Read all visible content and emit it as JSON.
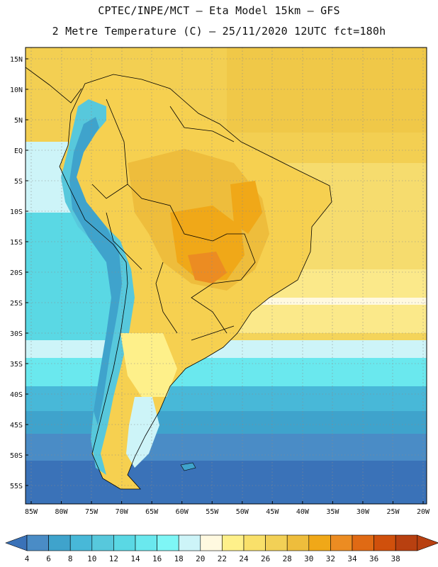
{
  "title_line1": "CPTEC/INPE/MCT –  Eta Model 15km – GFS",
  "title_line2": "2 Metre Temperature (C) – 25/11/2020 12UTC fct=180h",
  "latitude_ticks": [
    "15N",
    "10N",
    "5N",
    "EQ",
    "5S",
    "10S",
    "15S",
    "20S",
    "25S",
    "30S",
    "35S",
    "40S",
    "45S",
    "50S",
    "55S"
  ],
  "longitude_ticks": [
    "85W",
    "80W",
    "75W",
    "70W",
    "65W",
    "60W",
    "55W",
    "50W",
    "45W",
    "40W",
    "35W",
    "30W",
    "25W",
    "20W"
  ],
  "colorbar": {
    "labels": [
      "4",
      "6",
      "8",
      "10",
      "12",
      "14",
      "16",
      "18",
      "20",
      "22",
      "24",
      "26",
      "28",
      "30",
      "32",
      "34",
      "36",
      "38"
    ],
    "colors": [
      "#3a72b8",
      "#4a8cc6",
      "#3fa3cc",
      "#48b8d8",
      "#57c8dc",
      "#5ad8e4",
      "#6ae8ee",
      "#7ef6f6",
      "#cdf4f8",
      "#fff9e0",
      "#fef08a",
      "#f9e06a",
      "#f2d056",
      "#eebd3c",
      "#f0a818",
      "#ec8c22",
      "#e06a14",
      "#d0500c",
      "#b84010"
    ]
  },
  "icons": [
    "colorbar-left-arrow",
    "colorbar-right-arrow"
  ]
}
